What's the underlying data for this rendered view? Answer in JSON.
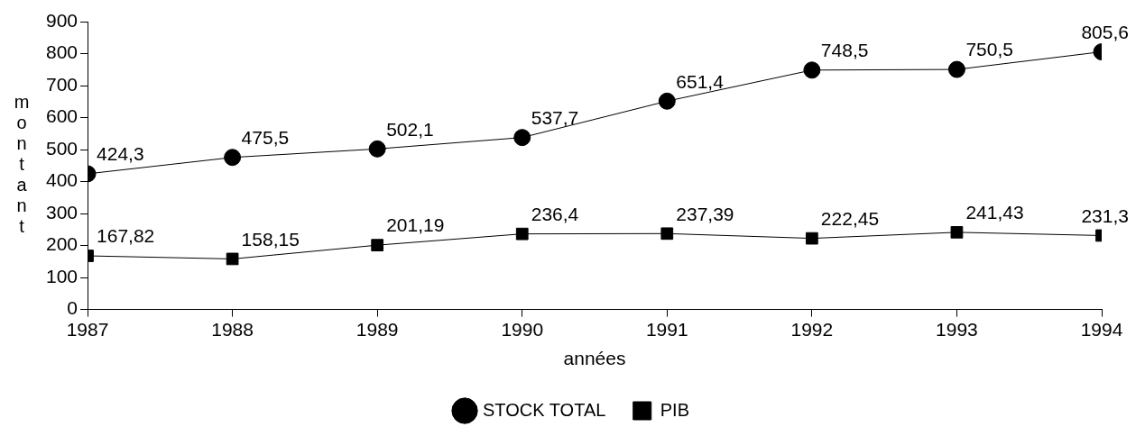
{
  "chart_data": {
    "type": "line",
    "xlabel": "années",
    "ylabel": "montant",
    "x": [
      1987,
      1988,
      1989,
      1990,
      1991,
      1992,
      1993,
      1994
    ],
    "xlim": [
      1987,
      1994
    ],
    "xticks": [
      1987,
      1988,
      1989,
      1990,
      1991,
      1992,
      1993,
      1994
    ],
    "ylim": [
      0,
      900
    ],
    "yticks": [
      0,
      100,
      200,
      300,
      400,
      500,
      600,
      700,
      800,
      900
    ],
    "grid": false,
    "legend": "bottom",
    "series": [
      {
        "name": "STOCK TOTAL",
        "color": "#000000",
        "marker": "circle",
        "values": [
          424.3,
          475.5,
          502.1,
          537.7,
          651.4,
          748.5,
          750.5,
          805.6
        ],
        "value_labels": [
          "424,3",
          "475,5",
          "502,1",
          "537,7",
          "651,4",
          "748,5",
          "750,5",
          "805,6"
        ]
      },
      {
        "name": "PIB",
        "color": "#000000",
        "marker": "square",
        "values": [
          167.82,
          158.15,
          201.19,
          236.4,
          237.39,
          222.45,
          241.43,
          231.3
        ],
        "value_labels": [
          "167,82",
          "158,15",
          "201,19",
          "236,4",
          "237,39",
          "222,45",
          "241,43",
          "231,3"
        ]
      }
    ]
  }
}
